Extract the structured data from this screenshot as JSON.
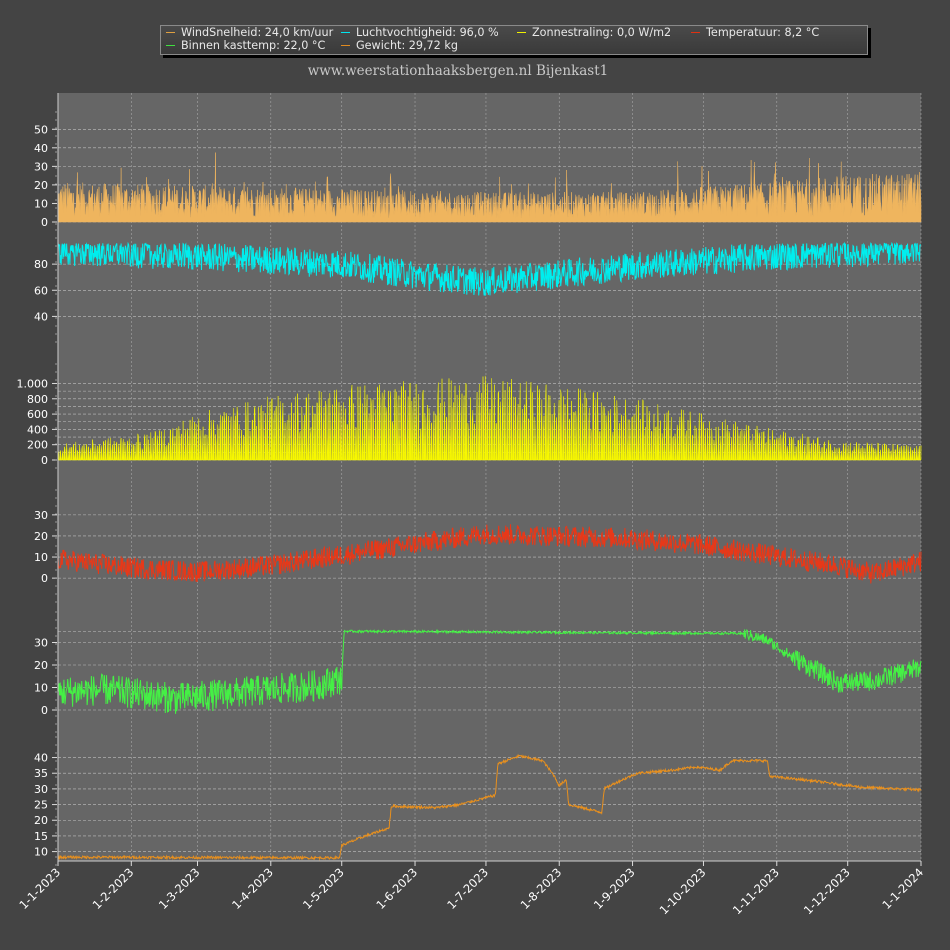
{
  "subtitle": "www.weerstationhaaksbergen.nl Bijenkast1",
  "legend": [
    {
      "label": "WindSnelheid: 24,0 km/uur",
      "color": "#e0a040"
    },
    {
      "label": "Luchtvochtigheid: 96,0 %",
      "color": "#00e5ee"
    },
    {
      "label": "Zonnestraling: 0,0 W/m2",
      "color": "#f0f000"
    },
    {
      "label": "Temperatuur: 8,2 °C",
      "color": "#e03010"
    },
    {
      "label": "Binnen kasttemp: 22,0 °C",
      "color": "#40e040"
    },
    {
      "label": "Gewicht: 29,72 kg",
      "color": "#e08a20"
    }
  ],
  "chart_data": {
    "type": "line",
    "x_ticks": [
      "1-1-2023",
      "1-2-2023",
      "1-3-2023",
      "1-4-2023",
      "1-5-2023",
      "1-6-2023",
      "1-7-2023",
      "1-8-2023",
      "1-9-2023",
      "1-10-2023",
      "1-11-2023",
      "1-12-2023",
      "1-1-2024"
    ],
    "x_range": [
      "2023-01-01",
      "2024-01-01"
    ],
    "grid": true,
    "legend_position": "top",
    "panels": [
      {
        "name": "WindSnelheid",
        "color": "#efb55e",
        "style": "area",
        "ylim": [
          0,
          55
        ],
        "ticks": [
          {
            "v": 0,
            "label": "0"
          },
          {
            "v": 10,
            "label": "10"
          },
          {
            "v": 20,
            "label": "20"
          },
          {
            "v": 30,
            "label": "30"
          },
          {
            "v": 40,
            "label": "40"
          },
          {
            "v": 50,
            "label": "50"
          }
        ],
        "grid_values": [
          0,
          10,
          20,
          30,
          40,
          50
        ],
        "profile": [
          [
            0,
            12
          ],
          [
            60,
            11
          ],
          [
            120,
            10
          ],
          [
            180,
            9
          ],
          [
            240,
            9
          ],
          [
            300,
            12
          ],
          [
            330,
            14
          ],
          [
            365,
            15
          ]
        ],
        "noise": 20,
        "max": 53
      },
      {
        "name": "Luchtvochtigheid",
        "color": "#00eeee",
        "style": "line",
        "ylim": [
          25,
          100
        ],
        "ticks": [
          {
            "v": 40,
            "label": "40"
          },
          {
            "v": 60,
            "label": "60"
          },
          {
            "v": 80,
            "label": "80"
          }
        ],
        "grid_values": [
          40,
          60,
          80
        ],
        "profile": [
          [
            0,
            90
          ],
          [
            60,
            86
          ],
          [
            120,
            80
          ],
          [
            150,
            72
          ],
          [
            180,
            66
          ],
          [
            210,
            72
          ],
          [
            240,
            78
          ],
          [
            270,
            82
          ],
          [
            300,
            86
          ],
          [
            365,
            91
          ]
        ],
        "noise": 22,
        "max": 96
      },
      {
        "name": "Zonnestraling",
        "color": "#f8f800",
        "style": "spikes",
        "ylim": [
          0,
          1150
        ],
        "ticks": [
          {
            "v": 0,
            "label": "0"
          },
          {
            "v": 200,
            "label": "200"
          },
          {
            "v": 400,
            "label": "400"
          },
          {
            "v": 600,
            "label": "600"
          },
          {
            "v": 800,
            "label": "800"
          },
          {
            "v": 1000,
            "label": "1.000"
          }
        ],
        "grid_values": [
          0,
          100,
          200,
          300,
          400,
          500,
          600,
          700,
          800,
          900,
          1000
        ],
        "profile": [
          [
            0,
            200
          ],
          [
            40,
            350
          ],
          [
            60,
            600
          ],
          [
            90,
            800
          ],
          [
            120,
            950
          ],
          [
            150,
            1000
          ],
          [
            180,
            1050
          ],
          [
            210,
            950
          ],
          [
            240,
            800
          ],
          [
            270,
            600
          ],
          [
            300,
            400
          ],
          [
            330,
            250
          ],
          [
            365,
            180
          ]
        ],
        "noise": 0,
        "max": 1150
      },
      {
        "name": "Temperatuur",
        "color": "#e83818",
        "style": "line",
        "ylim": [
          -8,
          38
        ],
        "ticks": [
          {
            "v": 0,
            "label": "0"
          },
          {
            "v": 10,
            "label": "10"
          },
          {
            "v": 20,
            "label": "20"
          },
          {
            "v": 30,
            "label": "30"
          }
        ],
        "grid_values": [
          0,
          10,
          20,
          30
        ],
        "profile": [
          [
            0,
            9
          ],
          [
            30,
            5
          ],
          [
            60,
            3
          ],
          [
            90,
            6
          ],
          [
            120,
            11
          ],
          [
            150,
            16
          ],
          [
            180,
            21
          ],
          [
            210,
            20
          ],
          [
            240,
            19
          ],
          [
            270,
            16
          ],
          [
            300,
            11
          ],
          [
            330,
            6
          ],
          [
            345,
            2
          ],
          [
            365,
            8
          ]
        ],
        "noise": 10
      },
      {
        "name": "Binnen kasttemp",
        "color": "#45f045",
        "style": "line",
        "ylim": [
          -8,
          40
        ],
        "ticks": [
          {
            "v": 0,
            "label": "0"
          },
          {
            "v": 10,
            "label": "10"
          },
          {
            "v": 20,
            "label": "20"
          },
          {
            "v": 30,
            "label": "30"
          }
        ],
        "grid_values": [
          0,
          10,
          20,
          30,
          35
        ],
        "profile": [
          [
            0,
            8
          ],
          [
            20,
            9
          ],
          [
            50,
            5
          ],
          [
            90,
            9
          ],
          [
            110,
            11
          ],
          [
            120,
            14
          ],
          [
            121,
            35
          ],
          [
            290,
            34
          ],
          [
            300,
            31
          ],
          [
            310,
            24
          ],
          [
            320,
            18
          ],
          [
            330,
            12
          ],
          [
            345,
            13
          ],
          [
            365,
            19
          ]
        ],
        "noise_ranges": [
          [
            0,
            120,
            14
          ],
          [
            120,
            290,
            1
          ],
          [
            290,
            310,
            5
          ],
          [
            310,
            366,
            9
          ]
        ]
      },
      {
        "name": "Gewicht",
        "color": "#e8901e",
        "style": "line",
        "ylim": [
          7,
          44
        ],
        "ticks": [
          {
            "v": 10,
            "label": "10"
          },
          {
            "v": 15,
            "label": "15"
          },
          {
            "v": 20,
            "label": "20"
          },
          {
            "v": 25,
            "label": "25"
          },
          {
            "v": 30,
            "label": "30"
          },
          {
            "v": 35,
            "label": "35"
          },
          {
            "v": 40,
            "label": "40"
          }
        ],
        "grid_values": [
          10,
          15,
          20,
          25,
          30,
          35,
          40
        ],
        "profile": [
          [
            0,
            8.2
          ],
          [
            31,
            8.2
          ],
          [
            60,
            8.1
          ],
          [
            119,
            8
          ],
          [
            120,
            12
          ],
          [
            130,
            15
          ],
          [
            140,
            17.5
          ],
          [
            141,
            24.5
          ],
          [
            160,
            24
          ],
          [
            170,
            25
          ],
          [
            185,
            28
          ],
          [
            186,
            38
          ],
          [
            195,
            40.5
          ],
          [
            205,
            39
          ],
          [
            210,
            34
          ],
          [
            212,
            31
          ],
          [
            215,
            33
          ],
          [
            216,
            25
          ],
          [
            230,
            22.5
          ],
          [
            231,
            30
          ],
          [
            236,
            32
          ],
          [
            245,
            35
          ],
          [
            260,
            36
          ],
          [
            270,
            37
          ],
          [
            280,
            36
          ],
          [
            285,
            39
          ],
          [
            300,
            39
          ],
          [
            301,
            34
          ],
          [
            320,
            32.5
          ],
          [
            340,
            30.5
          ],
          [
            365,
            29.7
          ]
        ],
        "noise": 0.8
      }
    ]
  }
}
